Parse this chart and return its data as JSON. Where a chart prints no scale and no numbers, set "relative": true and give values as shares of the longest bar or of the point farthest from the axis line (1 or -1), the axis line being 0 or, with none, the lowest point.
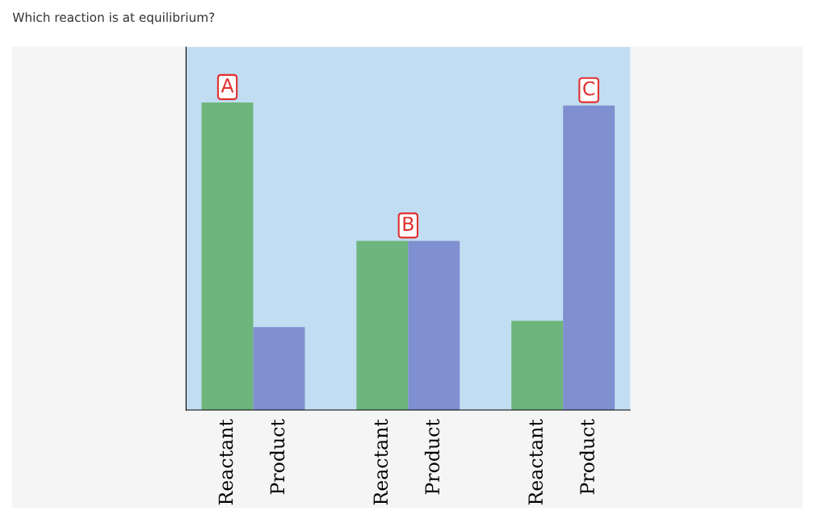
{
  "chart_data": {
    "type": "bar",
    "title": "Which reaction is at equilibrium?",
    "relative": true,
    "categories": [
      "Reactant",
      "Product",
      null,
      "Reactant",
      "Product",
      null,
      "Reactant",
      "Product"
    ],
    "values": [
      1,
      0.27,
      null,
      0.55,
      0.55,
      null,
      0.29,
      0.99
    ],
    "colors": [
      "#6db57c",
      "#7f8fcf",
      "#6db57c",
      "#6db57c",
      "#7f8fcf",
      "#6db57c",
      "#6db57c",
      "#7f8fcf"
    ],
    "annotations": [
      "A",
      "B",
      "C"
    ],
    "grid": false,
    "legend": false
  }
}
